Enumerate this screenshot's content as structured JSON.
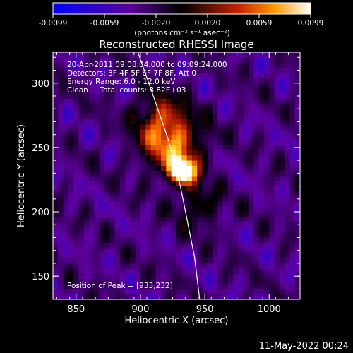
{
  "colorbar": {
    "tick_labels": [
      "-0.0099",
      "-0.0059",
      "-0.0020",
      "0.0020",
      "0.0059",
      "0.0099"
    ],
    "units": "(photons cm⁻² s⁻¹ asec⁻²)",
    "colors": [
      "#0000ff",
      "#5a0099",
      "#000000",
      "#c82200",
      "#ff9900",
      "#ffffff"
    ]
  },
  "chart_data": {
    "type": "heatmap",
    "title": "Reconstructed RHESSI Image",
    "xlabel": "Heliocentric X (arcsec)",
    "ylabel": "Heliocentric Y (arcsec)",
    "xlim": [
      832,
      1024
    ],
    "ylim": [
      132,
      324
    ],
    "x_ticks": [
      850,
      900,
      950,
      1000
    ],
    "y_ticks": [
      150,
      200,
      250,
      300
    ],
    "peak": {
      "x": 933,
      "y": 232
    },
    "info_lines": [
      "20-Apr-2011 09:08:04.000 to 09:09:24.000",
      "Detectors: 3F 4F 5F 6F 7F 8F, Att 0",
      "Energy Range: 6.0 - 12.0 keV",
      "Clean     Total counts: 8.82E+03"
    ],
    "peak_label": "Position of Peak = [933,232]",
    "limb_curve": [
      [
        898,
        324
      ],
      [
        910,
        290
      ],
      [
        922,
        255
      ],
      [
        930,
        225
      ],
      [
        936,
        195
      ],
      [
        942,
        165
      ],
      [
        946,
        132
      ]
    ]
  },
  "footer": {
    "timestamp": "11-May-2022 00:24"
  }
}
